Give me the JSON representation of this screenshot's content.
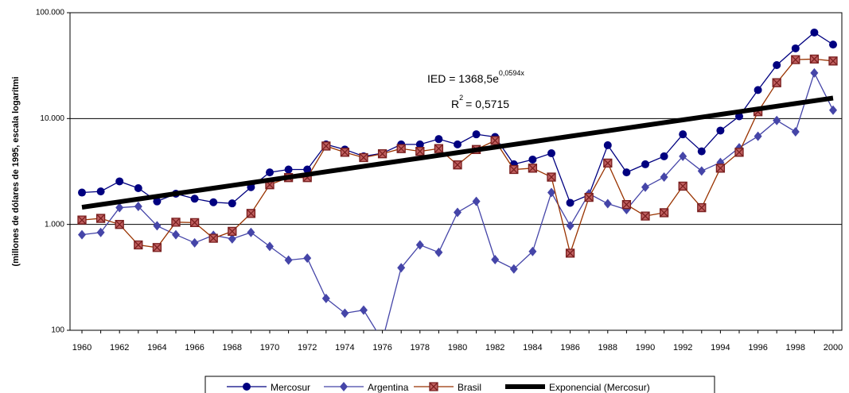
{
  "chart_data": {
    "type": "line",
    "ylabel": "(millones de dólares de 1995, escala logarítmi",
    "annotations": [
      {
        "text": "IED = 1368,5e",
        "sup": "0,0594x"
      },
      {
        "text": "R",
        "sup": "2",
        "rest": "= 0,5715"
      }
    ],
    "categories": [
      "1960",
      null,
      "1962",
      null,
      "1964",
      null,
      "1966",
      null,
      "1968",
      null,
      "1970",
      null,
      "1972",
      null,
      "1974",
      null,
      "1976",
      null,
      "1978",
      null,
      "1980",
      null,
      "1982",
      null,
      "1984",
      null,
      "1986",
      null,
      "1988",
      null,
      "1990",
      null,
      "1992",
      null,
      "1994",
      null,
      "1996",
      null,
      "1998",
      null,
      "2000"
    ],
    "ylim": [
      100,
      100000
    ],
    "log_y": true,
    "yticks": [
      100,
      {
        "value": 1000,
        "label": "1.000"
      },
      {
        "value": 10000,
        "label": "10.000"
      },
      {
        "value": 100000,
        "label": "100.000"
      }
    ],
    "grid": true,
    "legend": "bottom",
    "series": [
      {
        "name": "Mercosur",
        "color": "#000080",
        "marker": "circle",
        "values": [
          2000,
          2050,
          2550,
          2200,
          1650,
          1950,
          1750,
          1620,
          1580,
          2250,
          3100,
          3300,
          3300,
          5700,
          5100,
          4400,
          4700,
          5700,
          5700,
          6400,
          5700,
          7100,
          6700,
          3700,
          4100,
          4700,
          1600,
          1900,
          5600,
          3100,
          3700,
          4400,
          7100,
          4900,
          7700,
          10500,
          18600,
          32000,
          46000,
          65000,
          50000
        ]
      },
      {
        "name": "Argentina",
        "color": "#4545a8",
        "marker": "diamond",
        "values": [
          800,
          840,
          1440,
          1480,
          970,
          800,
          670,
          790,
          730,
          840,
          620,
          460,
          480,
          200,
          145,
          155,
          80,
          390,
          640,
          545,
          1300,
          1650,
          465,
          380,
          555,
          2000,
          970,
          1950,
          1570,
          1380,
          2250,
          2800,
          4400,
          3200,
          3850,
          5300,
          6800,
          9600,
          7500,
          27000,
          12000
        ]
      },
      {
        "name": "Brasil",
        "color": "#993300",
        "marker": "square",
        "values": [
          1100,
          1140,
          1000,
          640,
          605,
          1050,
          1040,
          740,
          860,
          1270,
          2370,
          2770,
          2770,
          5500,
          4800,
          4280,
          4650,
          5200,
          4900,
          5200,
          3650,
          5100,
          6200,
          3300,
          3400,
          2800,
          535,
          1800,
          3800,
          1540,
          1200,
          1290,
          2300,
          1440,
          3400,
          4800,
          11600,
          21800,
          36000,
          36500,
          35000
        ]
      },
      {
        "name": "Exponencial (Mercosur)",
        "color": "#000000",
        "marker": "none",
        "values": [
          1452,
          1541,
          1636,
          1736,
          1842,
          1955,
          2074,
          2201,
          2336,
          2479,
          2630,
          2791,
          2962,
          3144,
          3336,
          3540,
          3757,
          3987,
          4231,
          4490,
          4764,
          5056,
          5365,
          5694,
          6042,
          6412,
          6804,
          7221,
          7663,
          8131,
          8629,
          9157,
          9718,
          10312,
          10943,
          11613,
          12324,
          13078,
          13878,
          14728,
          15629
        ]
      }
    ]
  }
}
